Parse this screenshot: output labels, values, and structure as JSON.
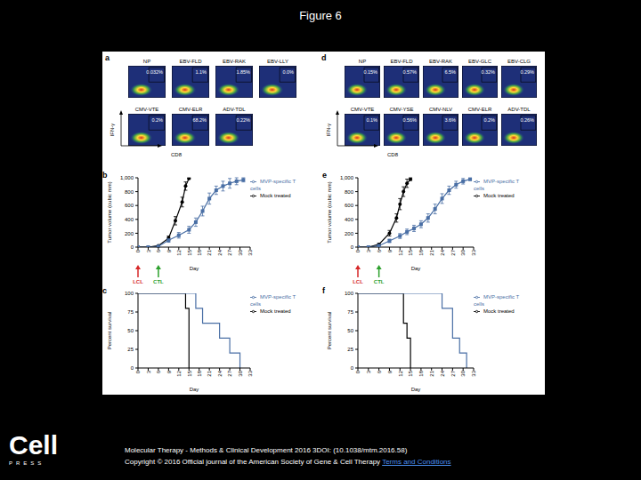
{
  "title": "Figure 6",
  "flow_panels": [
    {
      "panel_label": "a",
      "y_label": "IFN-γ",
      "x_label": "CD8",
      "rows": [
        [
          {
            "name": "NP",
            "percent": "0.032%"
          },
          {
            "name": "EBV-FLD",
            "percent": "1.1%"
          },
          {
            "name": "EBV-RAK",
            "percent": "1.85%"
          },
          {
            "name": "EBV-LLY",
            "percent": "0.0%"
          }
        ],
        [
          {
            "name": "CMV-VTE",
            "percent": "0.2%"
          },
          {
            "name": "CMV-ELR",
            "percent": "68.2%"
          },
          {
            "name": "ADV-TDL",
            "percent": "0.22%"
          }
        ]
      ]
    },
    {
      "panel_label": "d",
      "y_label": "IFN-γ",
      "x_label": "CD8",
      "rows": [
        [
          {
            "name": "NP",
            "percent": "0.15%"
          },
          {
            "name": "EBV-FLD",
            "percent": "0.57%"
          },
          {
            "name": "EBV-RAK",
            "percent": "6.5%"
          },
          {
            "name": "EBV-GLC",
            "percent": "0.32%"
          },
          {
            "name": "EBV-CLG",
            "percent": "0.29%"
          }
        ],
        [
          {
            "name": "CMV-VTE",
            "percent": "0.1%"
          },
          {
            "name": "CMV-YSE",
            "percent": "0.56%"
          },
          {
            "name": "CMV-NLV",
            "percent": "3.6%"
          },
          {
            "name": "CMV-ELR",
            "percent": "0.2%"
          },
          {
            "name": "ADV-TDL",
            "percent": "0.26%"
          }
        ]
      ]
    }
  ],
  "chart_data": [
    {
      "panel_label": "b",
      "type": "line",
      "x_label": "Day",
      "y_label": "Tumor volume (cubic mm)",
      "xlim": [
        0,
        33
      ],
      "xticks": [
        0,
        3,
        6,
        9,
        12,
        15,
        18,
        21,
        24,
        27,
        30,
        33
      ],
      "ylim": [
        0,
        1000
      ],
      "yticks": [
        0,
        200,
        400,
        600,
        800,
        {
          "value": 1000,
          "label": "1,000"
        }
      ],
      "legend": "upper right",
      "annotations": [
        {
          "text": "LCL",
          "x": 0,
          "color": "#d62728"
        },
        {
          "text": "CTL",
          "x": 6,
          "color": "#2ca02c"
        }
      ],
      "series": [
        {
          "name": "Mock treated",
          "color": "#000000",
          "marker": "circle",
          "x": [
            0,
            3,
            6,
            9,
            11,
            13,
            14,
            15
          ],
          "values": [
            0,
            0,
            20,
            130,
            380,
            650,
            880,
            990
          ],
          "errors": [
            0,
            0,
            10,
            30,
            60,
            70,
            60,
            10
          ]
        },
        {
          "name": "MVP-specific T cells",
          "color": "#4a6fa5",
          "marker": "square",
          "x": [
            0,
            3,
            6,
            9,
            12,
            15,
            17,
            19,
            21,
            23,
            25,
            27,
            29,
            31
          ],
          "values": [
            0,
            0,
            10,
            100,
            170,
            250,
            360,
            520,
            700,
            820,
            880,
            920,
            950,
            970
          ],
          "errors": [
            0,
            0,
            10,
            30,
            40,
            50,
            60,
            70,
            80,
            60,
            70,
            70,
            50,
            30
          ]
        }
      ]
    },
    {
      "panel_label": "c",
      "type": "step",
      "x_label": "Day",
      "y_label": "Percent survival",
      "xlim": [
        0,
        33
      ],
      "xticks": [
        0,
        3,
        6,
        9,
        12,
        15,
        18,
        21,
        24,
        27,
        30,
        33
      ],
      "ylim": [
        0,
        100
      ],
      "yticks": [
        0,
        25,
        50,
        75,
        100
      ],
      "legend": "upper right",
      "series": [
        {
          "name": "Mock treated",
          "color": "#000000",
          "x": [
            0,
            14,
            15
          ],
          "values": [
            100,
            80,
            0
          ]
        },
        {
          "name": "MVP-specific T cells",
          "color": "#4a6fa5",
          "x": [
            0,
            17,
            19,
            24,
            27,
            30
          ],
          "values": [
            100,
            80,
            60,
            40,
            20,
            0
          ]
        }
      ]
    },
    {
      "panel_label": "e",
      "type": "line",
      "x_label": "Day",
      "y_label": "Tumor volume (cubic mm)",
      "xlim": [
        0,
        33
      ],
      "xticks": [
        0,
        3,
        6,
        9,
        12,
        15,
        18,
        21,
        24,
        27,
        30,
        33
      ],
      "ylim": [
        0,
        1000
      ],
      "yticks": [
        0,
        200,
        400,
        600,
        800,
        {
          "value": 1000,
          "label": "1,000"
        }
      ],
      "legend": "upper right",
      "annotations": [
        {
          "text": "LCL",
          "x": 0,
          "color": "#d62728"
        },
        {
          "text": "CTL",
          "x": 6,
          "color": "#2ca02c"
        }
      ],
      "series": [
        {
          "name": "Mock treated",
          "color": "#000000",
          "marker": "circle",
          "x": [
            0,
            3,
            6,
            9,
            11,
            12,
            13,
            14,
            15
          ],
          "values": [
            0,
            0,
            40,
            200,
            420,
            620,
            800,
            920,
            980
          ],
          "errors": [
            0,
            0,
            15,
            40,
            60,
            80,
            70,
            60,
            20
          ]
        },
        {
          "name": "MVP-specific T cells",
          "color": "#4a6fa5",
          "marker": "square",
          "x": [
            0,
            3,
            6,
            9,
            12,
            14,
            16,
            18,
            20,
            22,
            24,
            26,
            28,
            30,
            32
          ],
          "values": [
            0,
            0,
            20,
            90,
            160,
            220,
            270,
            330,
            420,
            550,
            700,
            820,
            900,
            950,
            980
          ],
          "errors": [
            0,
            0,
            10,
            25,
            35,
            40,
            45,
            50,
            60,
            70,
            70,
            60,
            50,
            40,
            20
          ]
        }
      ]
    },
    {
      "panel_label": "f",
      "type": "step",
      "x_label": "Day",
      "y_label": "Percent survival",
      "xlim": [
        0,
        33
      ],
      "xticks": [
        0,
        3,
        6,
        9,
        12,
        15,
        18,
        21,
        24,
        27,
        30,
        33
      ],
      "ylim": [
        0,
        100
      ],
      "yticks": [
        0,
        25,
        50,
        75,
        100
      ],
      "legend": "upper right",
      "series": [
        {
          "name": "Mock treated",
          "color": "#000000",
          "x": [
            0,
            13,
            14,
            15
          ],
          "values": [
            100,
            60,
            40,
            0
          ]
        },
        {
          "name": "MVP-specific T cells",
          "color": "#4a6fa5",
          "x": [
            0,
            24,
            27,
            29,
            31
          ],
          "values": [
            100,
            80,
            40,
            20,
            0
          ]
        }
      ]
    }
  ],
  "footer": {
    "logo": "Cell",
    "logo_sub": "PRESS",
    "citation": "Molecular Therapy - Methods & Clinical Development 2016 3DOI: (10.1038/mtm.2016.58)",
    "copyright": "Copyright © 2016 Official journal of the American Society of Gene & Cell Therapy",
    "link": "Terms and Conditions"
  }
}
